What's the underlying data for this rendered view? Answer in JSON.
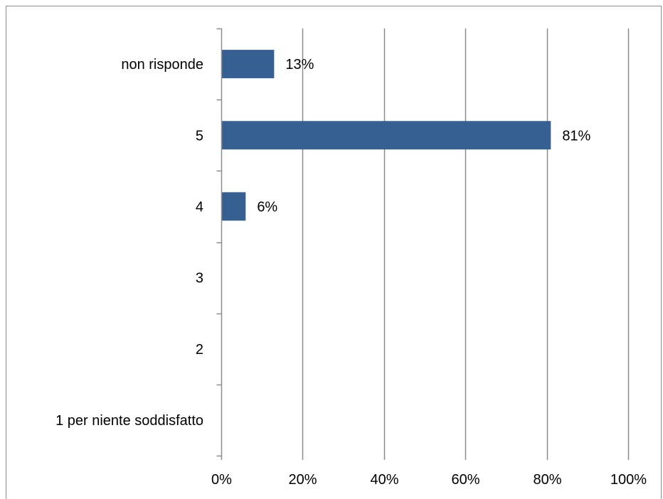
{
  "chart_data": {
    "type": "bar",
    "orientation": "horizontal",
    "title": "",
    "xlabel": "",
    "ylabel": "",
    "categories": [
      "non risponde",
      "5",
      "4",
      "3",
      "2",
      "1 per niente soddisfatto"
    ],
    "values": [
      13,
      81,
      6,
      null,
      null,
      null
    ],
    "value_labels": [
      "13%",
      "81%",
      "6%",
      "",
      "",
      ""
    ],
    "xlim": [
      0,
      100
    ],
    "x_ticks": [
      0,
      20,
      40,
      60,
      80,
      100
    ],
    "x_tick_labels": [
      "0%",
      "20%",
      "40%",
      "60%",
      "80%",
      "100%"
    ],
    "grid": "vertical",
    "legend": "none",
    "bar_color": "#376092",
    "grid_color": "#8c8c8c"
  }
}
